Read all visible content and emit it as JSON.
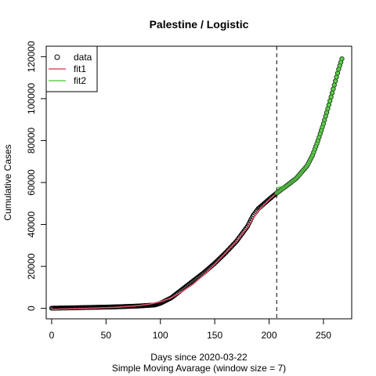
{
  "chart_data": {
    "type": "scatter",
    "title": "Palestine / Logistic",
    "xlabel": "Days since 2020-03-22",
    "xlabel2": "Simple Moving Avarage (window size = 7)",
    "ylabel": "Cumulative Cases",
    "xlim": [
      -5,
      276
    ],
    "ylim": [
      -5000,
      125000
    ],
    "xticks": [
      0,
      50,
      100,
      150,
      200,
      250
    ],
    "yticks": [
      0,
      20000,
      40000,
      60000,
      80000,
      100000,
      120000
    ],
    "vline_x": 207,
    "legend": {
      "position": "top-left",
      "entries": [
        {
          "label": "data",
          "kind": "point",
          "color": "#000000"
        },
        {
          "label": "fit1",
          "kind": "line",
          "color": "#DF536B"
        },
        {
          "label": "fit2",
          "kind": "line",
          "color": "#61D04F"
        }
      ]
    },
    "series": [
      {
        "name": "data",
        "kind": "points",
        "color": "#000000",
        "x_range": [
          0,
          267
        ],
        "points": [
          [
            0,
            60
          ],
          [
            20,
            250
          ],
          [
            40,
            480
          ],
          [
            60,
            720
          ],
          [
            80,
            1100
          ],
          [
            95,
            1600
          ],
          [
            100,
            2400
          ],
          [
            110,
            5000
          ],
          [
            120,
            9000
          ],
          [
            130,
            13000
          ],
          [
            140,
            17000
          ],
          [
            150,
            21500
          ],
          [
            160,
            26500
          ],
          [
            170,
            32000
          ],
          [
            180,
            39000
          ],
          [
            185,
            44000
          ],
          [
            190,
            47500
          ],
          [
            200,
            52000
          ],
          [
            207,
            55000
          ],
          [
            215,
            58000
          ],
          [
            225,
            62000
          ],
          [
            235,
            68000
          ],
          [
            240,
            73000
          ],
          [
            245,
            80000
          ],
          [
            250,
            88000
          ],
          [
            255,
            97000
          ],
          [
            260,
            106500
          ],
          [
            264,
            114000
          ],
          [
            267,
            119000
          ]
        ]
      },
      {
        "name": "fit1",
        "kind": "line",
        "color": "#DF536B",
        "x_range": [
          0,
          207
        ],
        "points": [
          [
            0,
            -500
          ],
          [
            20,
            -200
          ],
          [
            40,
            100
          ],
          [
            60,
            500
          ],
          [
            80,
            1300
          ],
          [
            90,
            2000
          ],
          [
            100,
            3200
          ],
          [
            110,
            5000
          ],
          [
            120,
            8000
          ],
          [
            130,
            11500
          ],
          [
            140,
            16000
          ],
          [
            150,
            21000
          ],
          [
            160,
            26500
          ],
          [
            170,
            32000
          ],
          [
            180,
            38500
          ],
          [
            190,
            46500
          ],
          [
            200,
            51800
          ],
          [
            207,
            55000
          ]
        ]
      },
      {
        "name": "fit2",
        "kind": "line",
        "color": "#61D04F",
        "x_range": [
          207,
          267
        ],
        "points": [
          [
            207,
            57500
          ],
          [
            215,
            58500
          ],
          [
            225,
            62000
          ],
          [
            235,
            68000
          ],
          [
            240,
            73000
          ],
          [
            245,
            80000
          ],
          [
            250,
            88000
          ],
          [
            255,
            97000
          ],
          [
            260,
            106500
          ],
          [
            264,
            114000
          ],
          [
            267,
            119000
          ]
        ]
      },
      {
        "name": "fit2 points",
        "kind": "points",
        "color": "#61D04F",
        "x_range": [
          207,
          267
        ],
        "points": [
          [
            207,
            55000
          ],
          [
            215,
            58000
          ],
          [
            225,
            62000
          ],
          [
            235,
            68000
          ],
          [
            240,
            73000
          ],
          [
            245,
            80000
          ],
          [
            250,
            88000
          ],
          [
            255,
            97000
          ],
          [
            260,
            106500
          ],
          [
            264,
            114000
          ],
          [
            267,
            119000
          ]
        ]
      }
    ]
  }
}
